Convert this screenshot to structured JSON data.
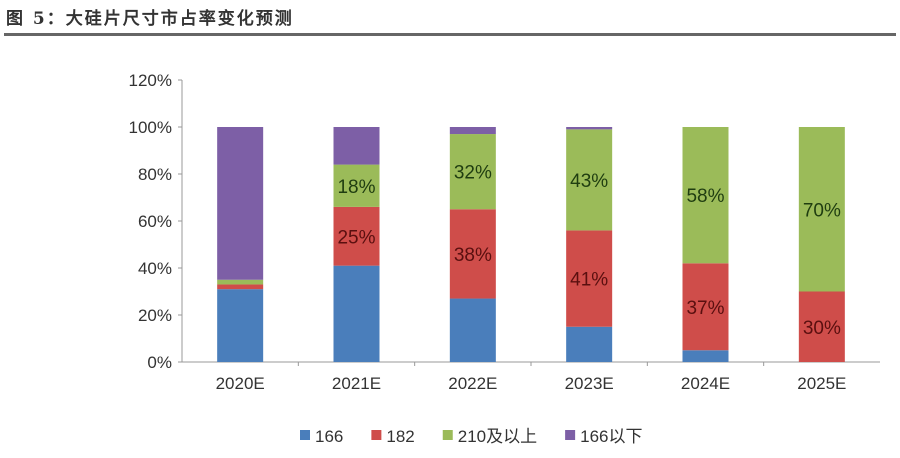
{
  "title": "图 5：大硅片尺寸市占率变化预测",
  "chart_data": {
    "type": "bar",
    "stacked": true,
    "title": "图 5：大硅片尺寸市占率变化预测",
    "categories": [
      "2020E",
      "2021E",
      "2022E",
      "2023E",
      "2024E",
      "2025E"
    ],
    "series": [
      {
        "name": "166",
        "color": "#4a7ebb",
        "values": [
          31,
          41,
          27,
          15,
          5,
          0
        ]
      },
      {
        "name": "182",
        "color": "#cf4d4a",
        "values": [
          2,
          25,
          38,
          41,
          37,
          30
        ]
      },
      {
        "name": "210及以上",
        "color": "#9bbb59",
        "values": [
          2,
          18,
          32,
          43,
          58,
          70
        ]
      },
      {
        "name": "166以下",
        "color": "#7d5fa6",
        "values": [
          65,
          16,
          3,
          1,
          0,
          0
        ]
      }
    ],
    "data_labels": [
      {
        "series": "182",
        "category": "2021E",
        "text": "25%"
      },
      {
        "series": "182",
        "category": "2022E",
        "text": "38%"
      },
      {
        "series": "182",
        "category": "2023E",
        "text": "41%"
      },
      {
        "series": "182",
        "category": "2024E",
        "text": "37%"
      },
      {
        "series": "182",
        "category": "2025E",
        "text": "30%"
      },
      {
        "series": "210及以上",
        "category": "2021E",
        "text": "18%"
      },
      {
        "series": "210及以上",
        "category": "2022E",
        "text": "32%"
      },
      {
        "series": "210及以上",
        "category": "2023E",
        "text": "43%"
      },
      {
        "series": "210及以上",
        "category": "2024E",
        "text": "58%"
      },
      {
        "series": "210及以上",
        "category": "2025E",
        "text": "70%"
      }
    ],
    "yticks": [
      "0%",
      "20%",
      "40%",
      "60%",
      "80%",
      "100%",
      "120%"
    ],
    "ylim": [
      0,
      120
    ],
    "grid": false,
    "legend": "bottom"
  }
}
